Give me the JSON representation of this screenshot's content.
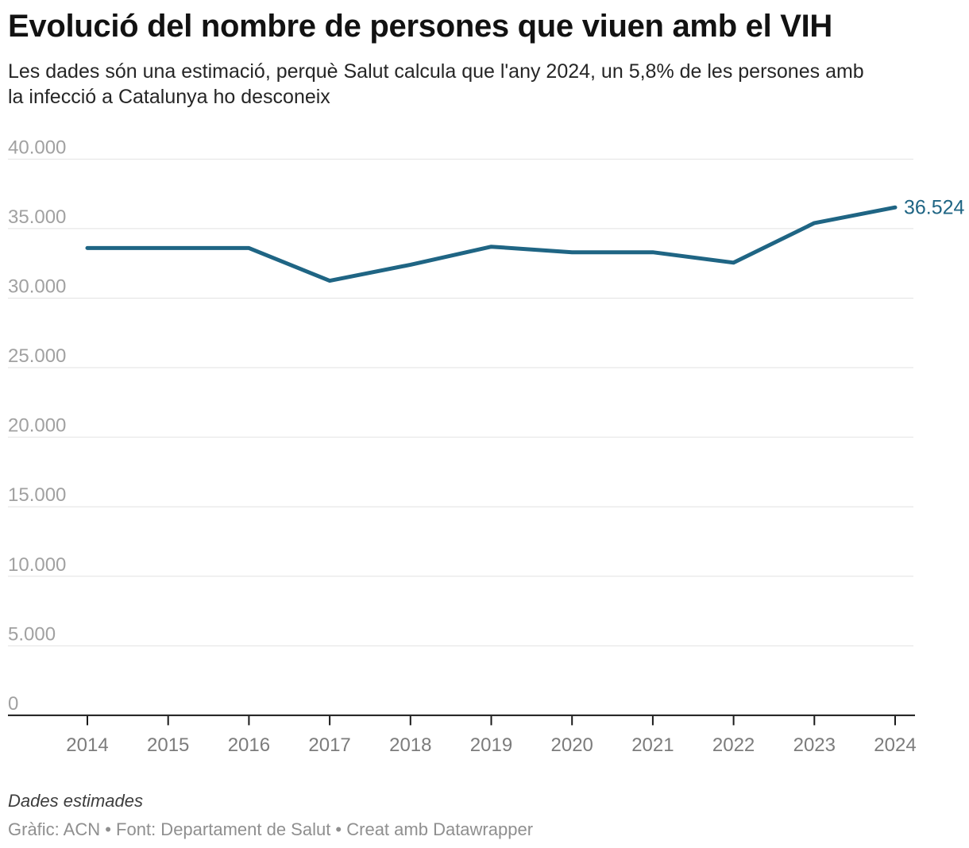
{
  "header": {
    "title": "Evolució del nombre de persones que viuen amb el VIH",
    "subtitle": "Les dades són una estimació, perquè Salut calcula que l'any 2024, un 5,8% de les persones amb\nla infecció a Catalunya ho desconeix"
  },
  "chart_data": {
    "type": "line",
    "title": "Evolució del nombre de persones que viuen amb el VIH",
    "x": [
      2014,
      2015,
      2016,
      2017,
      2018,
      2019,
      2020,
      2021,
      2022,
      2023,
      2024
    ],
    "series": [
      {
        "name": "Persones que viuen amb el VIH",
        "values": [
          33600,
          33600,
          33600,
          31250,
          32400,
          33700,
          33300,
          33300,
          32550,
          35400,
          36524
        ]
      }
    ],
    "end_label": "36.524",
    "ylim": [
      0,
      40000
    ],
    "xlabel": "",
    "ylabel": "",
    "y_ticks": [
      {
        "value": 40000,
        "label": "40.000"
      },
      {
        "value": 35000,
        "label": "35.000"
      },
      {
        "value": 30000,
        "label": "30.000"
      },
      {
        "value": 25000,
        "label": "25.000"
      },
      {
        "value": 20000,
        "label": "20.000"
      },
      {
        "value": 15000,
        "label": "15.000"
      },
      {
        "value": 10000,
        "label": "10.000"
      },
      {
        "value": 5000,
        "label": "5.000"
      },
      {
        "value": 0,
        "label": "0"
      }
    ],
    "grid": true,
    "legend": "none",
    "line_color": "#1f6584"
  },
  "footer": {
    "note": "Dades estimades",
    "credits": "Gràfic: ACN • Font: Departament de Salut • Creat amb Datawrapper"
  },
  "colors": {
    "background": "#ffffff",
    "title": "#121212",
    "subtitle": "#262626",
    "axis": "#1a1a1a",
    "gridline": "#e2e2e2",
    "y_label": "#a1a1a1",
    "x_label": "#7c7c7c",
    "line": "#1f6584",
    "note": "#3d3d3d",
    "credits": "#8f8f8f"
  }
}
